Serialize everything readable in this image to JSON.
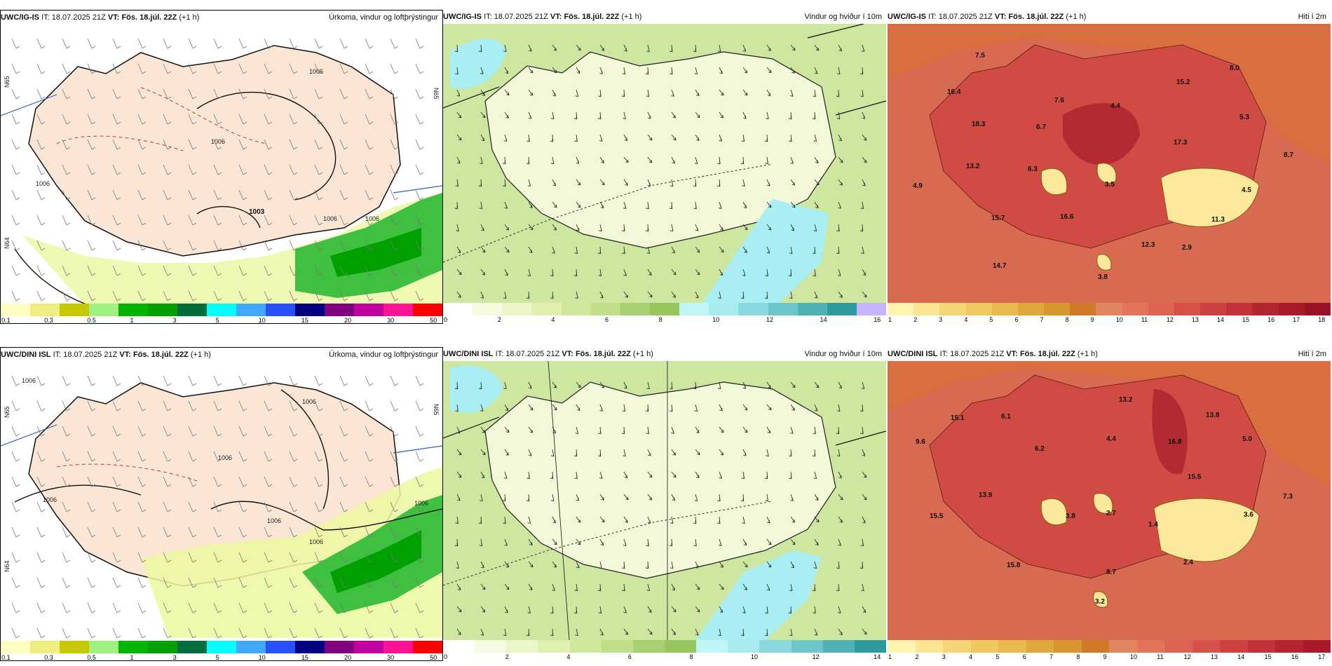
{
  "common": {
    "it_label": "IT:",
    "it_value": "18.07.2025 21Z",
    "vt_label": "VT:",
    "vt_value": "Fös. 18.júl. 22Z",
    "lead": "(+1 h)"
  },
  "rows": [
    {
      "model": "UWC/IG-IS",
      "precip": {
        "title": "Úrkoma, vindur og loftþrýstingur",
        "isobar_labels": [
          "1006",
          "1006",
          "1006",
          "1006",
          "1006",
          "1003"
        ],
        "lat_labels": [
          "N65",
          "N65",
          "N64"
        ]
      },
      "wind": {
        "title": "Vindur og hviður í 10m"
      },
      "temp": {
        "title": "Hiti í 2m",
        "values": [
          "7.5",
          "8.0",
          "16.4",
          "7.6",
          "4.4",
          "15.2",
          "18.3",
          "6.7",
          "5.3",
          "17.3",
          "13.2",
          "6.3",
          "8.7",
          "4.9",
          "3.5",
          "4.5",
          "15.7",
          "16.6",
          "11.3",
          "12.3",
          "2.9",
          "14.7",
          "3.8"
        ]
      }
    },
    {
      "model": "UWC/DINI ISL",
      "precip": {
        "title": "Úrkoma, vindur og loftþrýstingur",
        "isobar_labels": [
          "1006",
          "1006",
          "1006",
          "1006",
          "1006",
          "1006",
          "1006"
        ],
        "lat_labels": [
          "N65",
          "N65",
          "N64"
        ]
      },
      "wind": {
        "title": "Vindur og hviður í 10m"
      },
      "temp": {
        "title": "Hiti í 2m",
        "values": [
          "13.2",
          "15.1",
          "6.1",
          "13.8",
          "9.6",
          "6.2",
          "4.4",
          "16.8",
          "5.0",
          "15.5",
          "13.9",
          "15.5",
          "3.8",
          "2.7",
          "1.4",
          "3.6",
          "7.3",
          "15.8",
          "2.4",
          "8.7",
          "3.2"
        ]
      }
    }
  ],
  "colorbars": {
    "precip": {
      "colors": [
        "#ffffc0",
        "#eeee80",
        "#c8c800",
        "#a0f080",
        "#00b400",
        "#00a000",
        "#006e3c",
        "#00ffff",
        "#40a8ff",
        "#2850ff",
        "#000080",
        "#800080",
        "#c000a0",
        "#ff1493",
        "#ff0000"
      ],
      "ticks": [
        "0.1",
        "0.3",
        "0.5",
        "1",
        "3",
        "5",
        "10",
        "15",
        "20",
        "30",
        "50"
      ]
    },
    "wind_top": {
      "colors": [
        "#ffffff",
        "#f5fbe0",
        "#ecf6c8",
        "#dff0b0",
        "#cfe79a",
        "#bfdf88",
        "#a9d070",
        "#98c65e",
        "#bff5f5",
        "#a6ecef",
        "#8ad9de",
        "#6ec6c8",
        "#4fb1b3",
        "#2e9c9e",
        "#c5b5ff"
      ],
      "ticks": [
        "0",
        "2",
        "4",
        "6",
        "8",
        "10",
        "12",
        "14",
        "16"
      ]
    },
    "wind_bottom": {
      "colors": [
        "#ffffff",
        "#f5fbe0",
        "#ecf6c8",
        "#dff0b0",
        "#cfe79a",
        "#bfdf88",
        "#a9d070",
        "#98c65e",
        "#bff5f5",
        "#a6ecef",
        "#8ad9de",
        "#6ec6c8",
        "#4fb1b3",
        "#2e9c9e"
      ],
      "ticks": [
        "0",
        "2",
        "4",
        "6",
        "8",
        "10",
        "12",
        "14"
      ]
    },
    "temp_top": {
      "colors": [
        "#fff3b0",
        "#fbe492",
        "#f5d677",
        "#efc860",
        "#e8b94c",
        "#e0a83c",
        "#d8962f",
        "#d07a27",
        "#e0855e",
        "#e2745a",
        "#dd6351",
        "#d65249",
        "#cd4140",
        "#c23238",
        "#b52530",
        "#a81a2a",
        "#9a1025"
      ],
      "ticks": [
        "1",
        "2",
        "3",
        "4",
        "5",
        "6",
        "7",
        "8",
        "9",
        "10",
        "11",
        "12",
        "13",
        "14",
        "15",
        "16",
        "17",
        "18"
      ]
    },
    "temp_bottom": {
      "colors": [
        "#fff3b0",
        "#fbe492",
        "#f5d677",
        "#efc860",
        "#e8b94c",
        "#e0a83c",
        "#d8962f",
        "#d07a27",
        "#e0855e",
        "#e2745a",
        "#dd6351",
        "#d65249",
        "#cd4140",
        "#c23238",
        "#b52530",
        "#a81a2a"
      ],
      "ticks": [
        "1",
        "2",
        "3",
        "4",
        "5",
        "6",
        "7",
        "8",
        "9",
        "10",
        "11",
        "12",
        "13",
        "14",
        "15",
        "16",
        "17"
      ]
    }
  },
  "colors": {
    "land_precip": "#fbe6d6",
    "sea_precip": "#ffffff",
    "wind_bg": "#cde6a0",
    "temp_bg": "#d86a52",
    "temp_sea": "#d9703c"
  }
}
